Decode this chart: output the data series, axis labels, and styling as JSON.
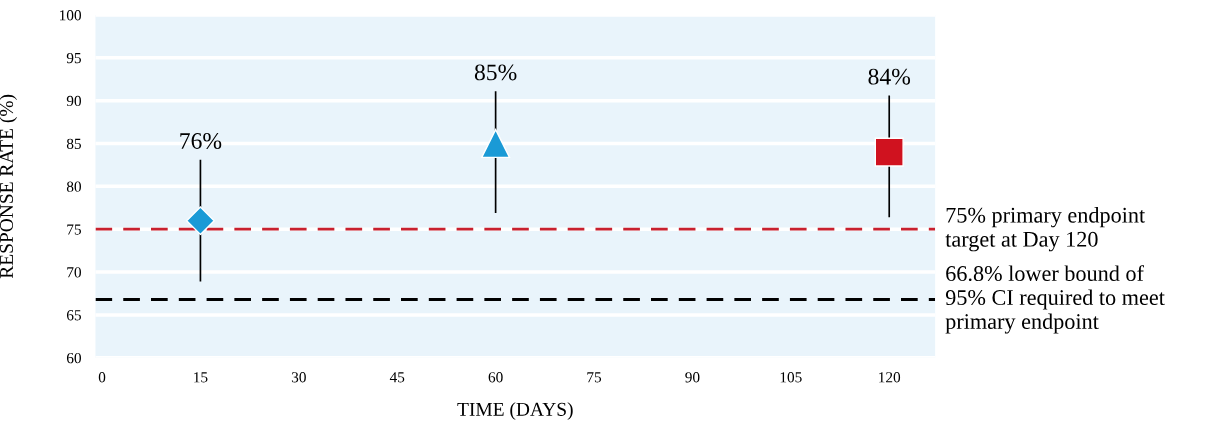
{
  "chart_data": {
    "type": "scatter",
    "xlabel": "TIME (DAYS)",
    "ylabel": "RESPONSE RATE (%)",
    "xlim": [
      -1,
      127
    ],
    "xticks": [
      0,
      15,
      30,
      45,
      60,
      75,
      90,
      105,
      120
    ],
    "ylim": [
      60,
      100
    ],
    "yticks": [
      60,
      65,
      70,
      75,
      80,
      85,
      90,
      95,
      100
    ],
    "grid": "y",
    "series": [
      {
        "x": [
          15
        ],
        "values": [
          76
        ],
        "color": "#1a9ad6",
        "marker": "diamond",
        "errors": [
          [
            69,
            83
          ]
        ],
        "value_labels": [
          "76%"
        ]
      },
      {
        "x": [
          60
        ],
        "values": [
          85
        ],
        "color": "#1a9ad6",
        "marker": "triangle",
        "errors": [
          [
            77,
            91
          ]
        ],
        "value_labels": [
          "85%"
        ]
      },
      {
        "x": [
          120
        ],
        "values": [
          84
        ],
        "color": "#d0121f",
        "marker": "square",
        "errors": [
          [
            76.5,
            90.5
          ]
        ],
        "value_labels": [
          "84%"
        ]
      }
    ],
    "ref_lines": [
      {
        "axis": "y",
        "value": 75,
        "label": "75% primary endpoint\ntarget at Day 120",
        "color": "#c8202e",
        "line_style": "dashed"
      },
      {
        "axis": "y",
        "value": 66.8,
        "label": "66.8% lower bound of\n95% CI required to meet\nprimary endpoint",
        "color": "#000000",
        "line_style": "dashed"
      }
    ]
  }
}
